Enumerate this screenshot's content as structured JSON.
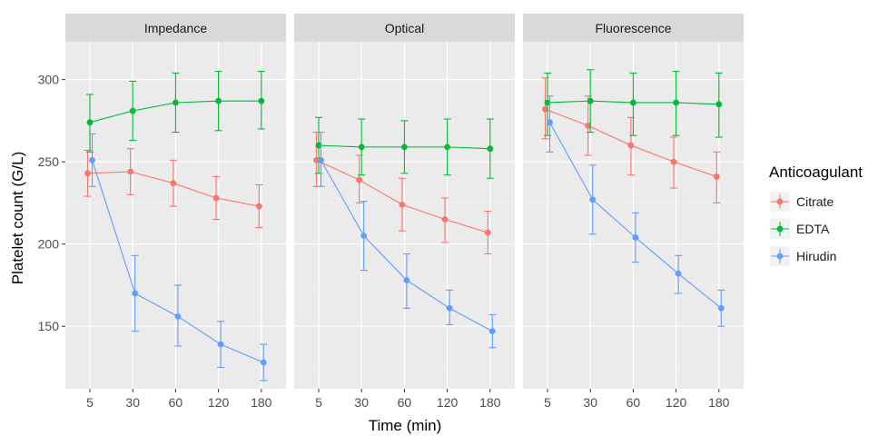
{
  "chart_data": {
    "type": "line",
    "xlabel": "Time (min)",
    "ylabel": "Platelet count (G/L)",
    "categories": [
      "5",
      "30",
      "60",
      "120",
      "180"
    ],
    "ylim": [
      112,
      323
    ],
    "yticks": [
      150,
      200,
      250,
      300
    ],
    "grid": true,
    "legend": {
      "title": "Anticoagulant",
      "placement": "right",
      "entries": [
        "Citrate",
        "EDTA",
        "Hirudin"
      ]
    },
    "colors": {
      "Citrate": "#F8766D",
      "EDTA": "#00BA38",
      "Hirudin": "#619CFF"
    },
    "panels": [
      {
        "name": "Impedance",
        "series": [
          {
            "name": "Citrate",
            "values": [
              243,
              244,
              237,
              228,
              223
            ],
            "err_low": [
              229,
              230,
              223,
              215,
              210
            ],
            "err_high": [
              257,
              258,
              251,
              241,
              236
            ]
          },
          {
            "name": "EDTA",
            "values": [
              274,
              281,
              286,
              287,
              287
            ],
            "err_low": [
              256,
              263,
              268,
              269,
              270
            ],
            "err_high": [
              291,
              299,
              304,
              305,
              305
            ]
          },
          {
            "name": "Hirudin",
            "values": [
              251,
              170,
              156,
              139,
              128
            ],
            "err_low": [
              235,
              147,
              138,
              125,
              117
            ],
            "err_high": [
              267,
              193,
              175,
              153,
              139
            ]
          }
        ]
      },
      {
        "name": "Optical",
        "series": [
          {
            "name": "Citrate",
            "values": [
              251,
              239,
              224,
              215,
              207
            ],
            "err_low": [
              235,
              225,
              208,
              201,
              194
            ],
            "err_high": [
              268,
              254,
              240,
              228,
              220
            ]
          },
          {
            "name": "EDTA",
            "values": [
              260,
              259,
              259,
              259,
              258
            ],
            "err_low": [
              243,
              242,
              243,
              242,
              240
            ],
            "err_high": [
              277,
              276,
              275,
              276,
              276
            ]
          },
          {
            "name": "Hirudin",
            "values": [
              251,
              205,
              178,
              161,
              147
            ],
            "err_low": [
              235,
              184,
              161,
              151,
              137
            ],
            "err_high": [
              268,
              226,
              194,
              172,
              157
            ]
          }
        ]
      },
      {
        "name": "Fluorescence",
        "series": [
          {
            "name": "Citrate",
            "values": [
              282,
              272,
              260,
              250,
              241
            ],
            "err_low": [
              264,
              254,
              242,
              234,
              225
            ],
            "err_high": [
              301,
              290,
              277,
              265,
              256
            ]
          },
          {
            "name": "EDTA",
            "values": [
              286,
              287,
              286,
              286,
              285
            ],
            "err_low": [
              266,
              268,
              266,
              266,
              265
            ],
            "err_high": [
              304,
              306,
              304,
              305,
              304
            ]
          },
          {
            "name": "Hirudin",
            "values": [
              274,
              227,
              204,
              182,
              161
            ],
            "err_low": [
              256,
              206,
              189,
              170,
              150
            ],
            "err_high": [
              290,
              248,
              219,
              193,
              172
            ]
          }
        ]
      }
    ]
  }
}
